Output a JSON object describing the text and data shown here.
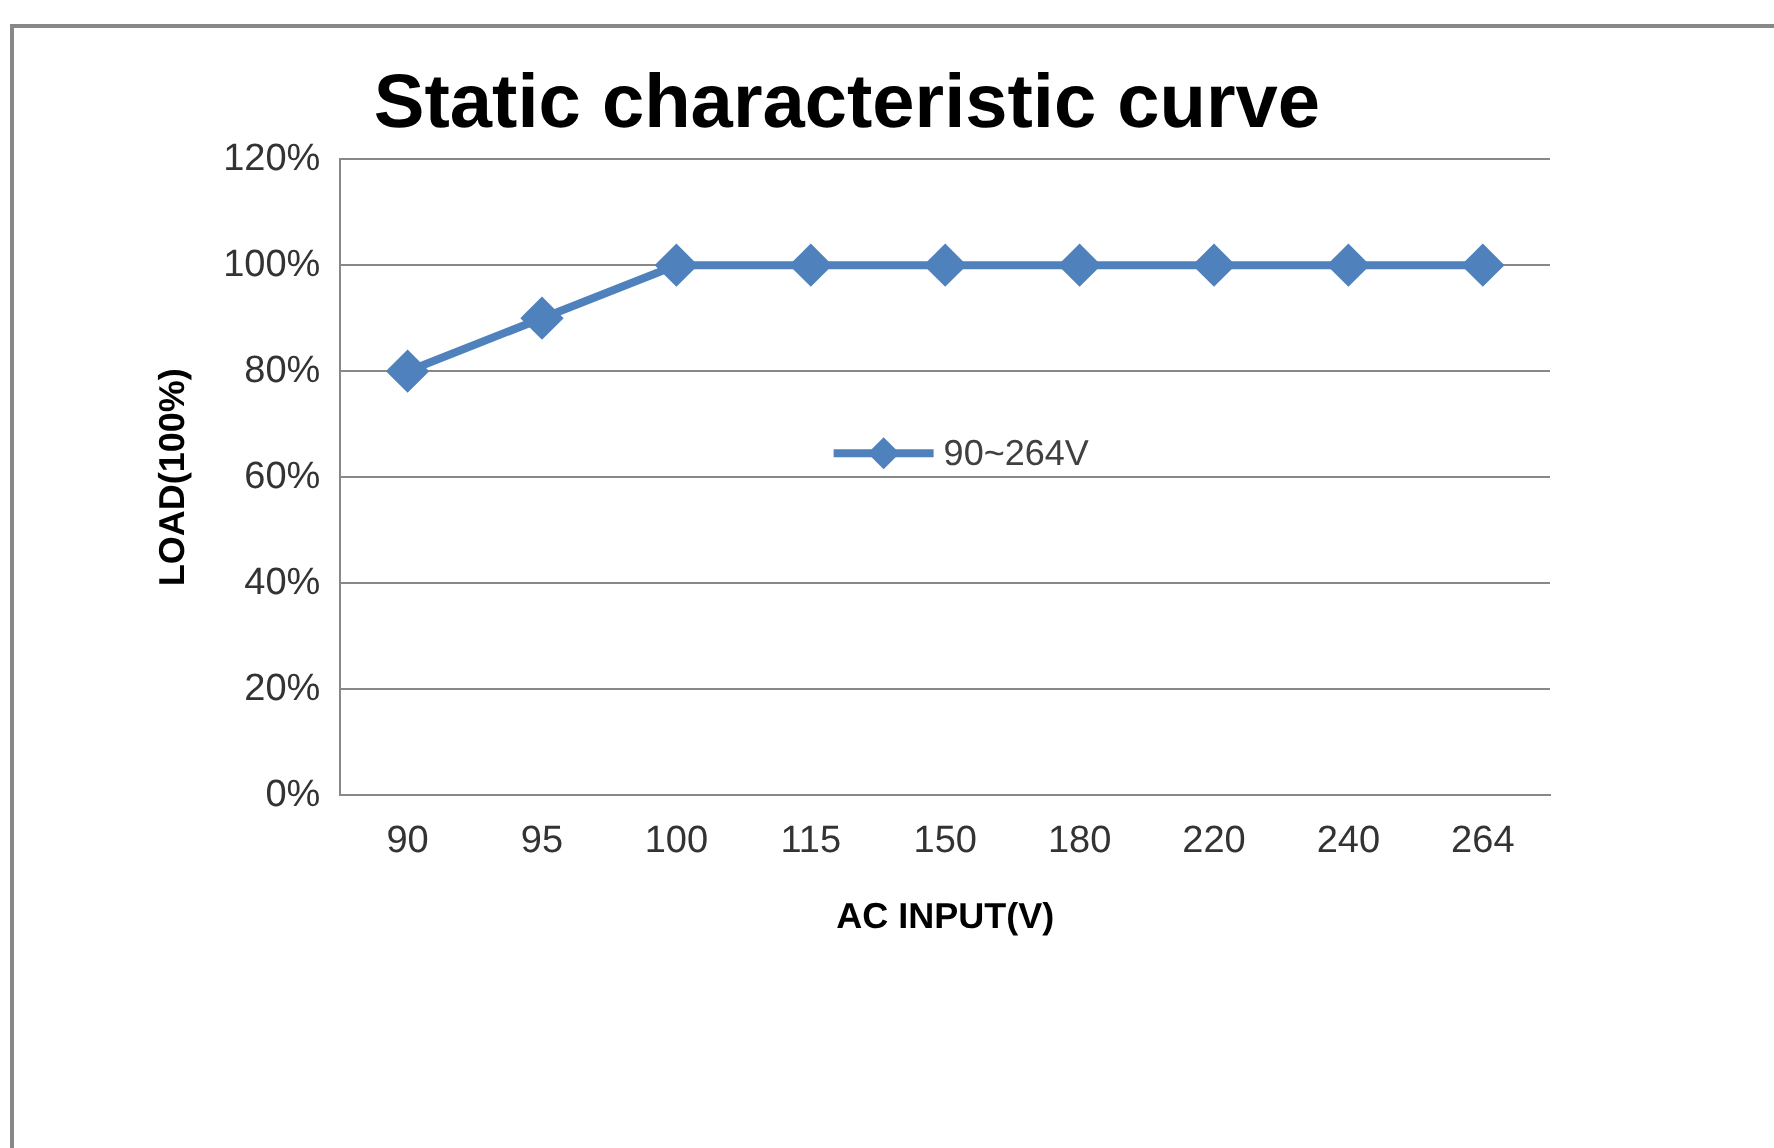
{
  "chart_data": {
    "type": "line",
    "title": "Static characteristic curve",
    "xlabel": "AC INPUT(V)",
    "ylabel": "LOAD(100%)",
    "categories": [
      "90",
      "95",
      "100",
      "115",
      "150",
      "180",
      "220",
      "240",
      "264"
    ],
    "series": [
      {
        "name": "90~264V",
        "color": "#4f81bd",
        "values": [
          80,
          90,
          100,
          100,
          100,
          100,
          100,
          100,
          100
        ]
      }
    ],
    "ylim": [
      0,
      120
    ],
    "yticks": [
      {
        "value": 0,
        "label": "0%"
      },
      {
        "value": 20,
        "label": "20%"
      },
      {
        "value": 40,
        "label": "40%"
      },
      {
        "value": 60,
        "label": "60%"
      },
      {
        "value": 80,
        "label": "80%"
      },
      {
        "value": 100,
        "label": "100%"
      },
      {
        "value": 120,
        "label": "120%"
      }
    ],
    "grid": "y",
    "legend": "center",
    "marker": "diamond",
    "line_style": "solid"
  }
}
